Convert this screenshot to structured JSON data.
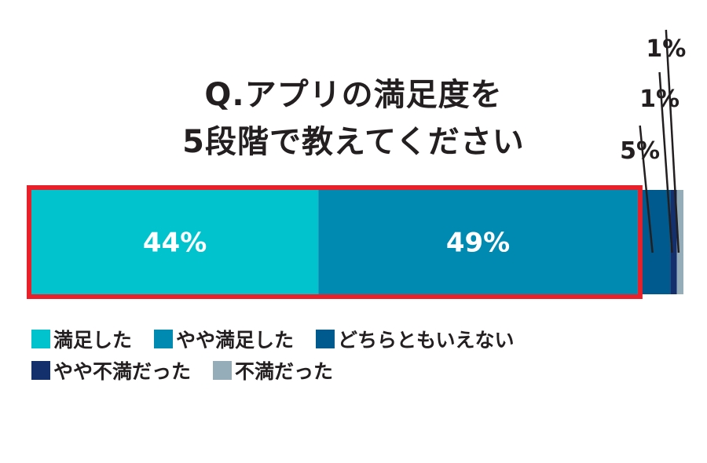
{
  "chart_data": {
    "type": "bar",
    "orientation": "horizontal-stacked",
    "title_lines": [
      "Q.アプリの満足度を",
      "5段階で教えてください"
    ],
    "series": [
      {
        "name": "満足した",
        "value": 44,
        "label": "44%",
        "color": "#00c3cd"
      },
      {
        "name": "やや満足した",
        "value": 49,
        "label": "49%",
        "color": "#0089b1"
      },
      {
        "name": "どちらともいえない",
        "value": 5,
        "label": "5%",
        "color": "#005a8e"
      },
      {
        "name": "やや不満だった",
        "value": 1,
        "label": "1%",
        "color": "#13306d"
      },
      {
        "name": "不満だった",
        "value": 1,
        "label": "1%",
        "color": "#95adb9"
      }
    ],
    "highlight": {
      "series_indices": [
        0,
        1
      ],
      "color": "#e8202a"
    },
    "legend_position": "bottom-left"
  }
}
